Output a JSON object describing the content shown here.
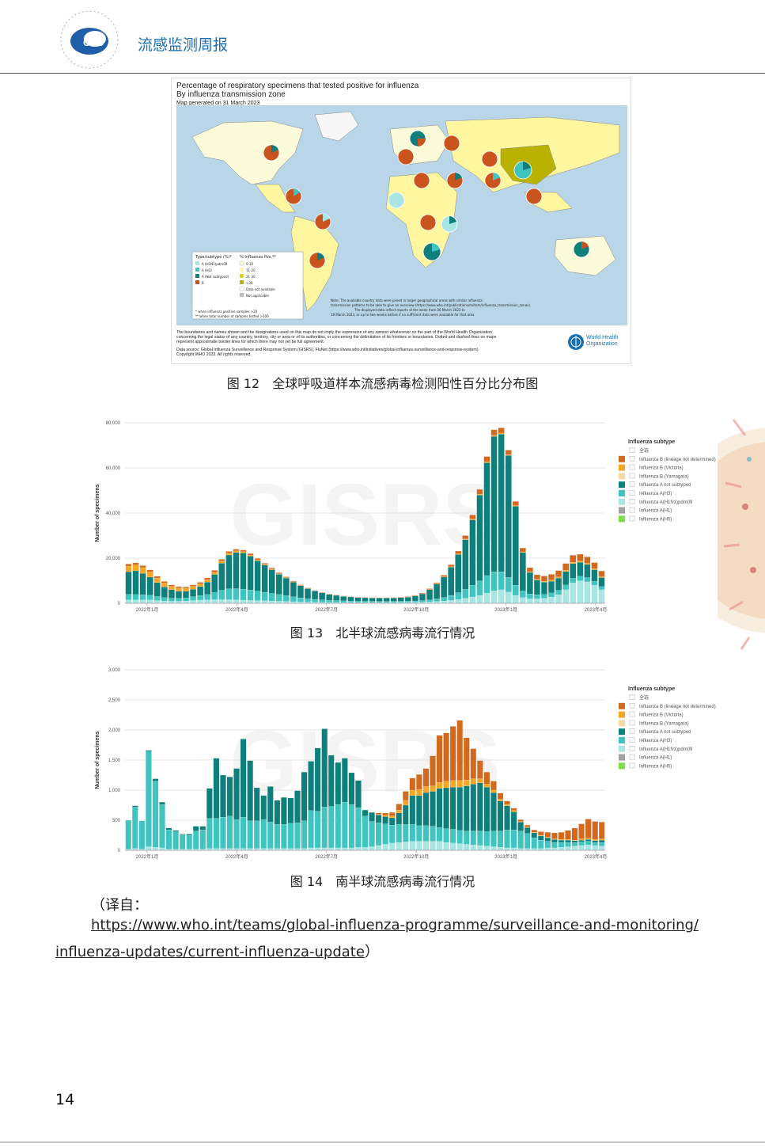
{
  "header": {
    "logo_text": "CDC",
    "title": "流感监测周报"
  },
  "figure12": {
    "map_title_lines": [
      "Percentage of respiratory specimens that tested positive for influenza",
      "By influenza transmission zone"
    ],
    "map_generated": "Map generated on 31 March 2023",
    "legend_type_title": "Type/subtype (%)*",
    "legend_types": [
      "A (H1N1)pdm09",
      "A (H3)",
      "A (Not subtyped)",
      "B"
    ],
    "legend_pos_title": "% Influenza Pos.**",
    "legend_pos": [
      "0-10",
      "11-20",
      "21-30",
      ">30",
      "Data not available",
      "Not applicable"
    ],
    "legend_notes": [
      "* when influenza positive samples >20",
      "** when total number of samples tested >100"
    ],
    "map_note_1": "Note: The available country data were joined in larger geographical areas with similar influenza",
    "map_note_2": "transmission patterns to be able to give an overview (https://www.who.int/publications/m/item/influenza_transmission_zones).",
    "map_note_3": "The displayed data reflect reports of the week from 06 March 2023 to",
    "map_note_4": "19 March 2023, or up to two weeks before if no sufficient data were available for that area",
    "disclaimer_1": "The boundaries and names shown and the designations used on this map do not imply the expression of any opinion whatsoever on the part of the World Health Organization",
    "disclaimer_2": "concerning the legal status of any country, territory, city or area or of its authorities, or concerning the delimitation of its frontiers or boundaries. Dotted and dashed lines on maps",
    "disclaimer_3": "represent approximate border lines for which there may not yet be full agreement.",
    "source_1": "Data source: Global Influenza Surveillance and Response System (GISRS), FluNet (https://www.who.int/initiatives/global-influenza-surveillance-and-response-system)",
    "source_2": "Copyright WHO 2023. All rights reserved.",
    "who_label_1": "World Health",
    "who_label_2": "Organization",
    "caption": "图 12　全球呼吸道样本流感病毒检测阳性百分比分布图"
  },
  "figure13": {
    "caption": "图 13　北半球流感病毒流行情况"
  },
  "figure14": {
    "caption": "图 14　南半球流感病毒流行情况"
  },
  "translation_note": {
    "prefix": "（译自：",
    "url_line1": "https://www.who.int/teams/global-influenza-programme/surveillance-and-monitoring/",
    "url_line2": "influenza-updates/current-influenza-update",
    "suffix": "）"
  },
  "page_number": "14",
  "colors": {
    "b_lineage_not_determined": "#d2691e",
    "b_victoria": "#f5a623",
    "b_yamagata": "#f8d8a8",
    "a_not_subtyped": "#0e7f7a",
    "a_h3": "#40c4c0",
    "a_h1n1pdm09": "#a8e6e3",
    "a_h1": "#a0a0a0",
    "a_h5": "#7de04a"
  },
  "chart_data": [
    {
      "type": "bar",
      "stacked": true,
      "watermark": "GISRS",
      "ylabel": "Number of specimens",
      "ylim": [
        0,
        80000
      ],
      "y_ticks": [
        "0",
        "20,000",
        "40,000",
        "60,000",
        "80,000"
      ],
      "x_tick_labels": [
        "2022年1月",
        "2022年4月",
        "2022年7月",
        "2022年10月",
        "2023年1月",
        "2023年4月"
      ],
      "legend_title": "Influenza subtype",
      "legend_items": [
        "全选",
        "Influenza B (lineage not determined)",
        "Influenza B (Victoria)",
        "Influenza B (Yamagata)",
        "Influenza A not subtyped",
        "Influenza A(H3)",
        "Influenza A(H1N1)pdm09",
        "Influenza A(H1)",
        "Influenza A(H5)"
      ],
      "series": [
        {
          "name": "Influenza A(H1N1)pdm09",
          "values": [
            1500,
            1500,
            1500,
            1500,
            1200,
            1000,
            900,
            900,
            1000,
            1200,
            1400,
            1500,
            1600,
            1600,
            1600,
            1500,
            1400,
            1300,
            1200,
            1100,
            1000,
            900,
            800,
            700,
            600,
            500,
            450,
            400,
            380,
            360,
            340,
            330,
            320,
            330,
            340,
            350,
            360,
            380,
            400,
            420,
            450,
            500,
            600,
            800,
            1000,
            1300,
            1700,
            2200,
            2800,
            3500,
            4500,
            5500,
            6000,
            5000,
            3500,
            2500,
            2000,
            2000,
            2200,
            2800,
            3800,
            6000,
            9000,
            10000,
            9500,
            8000,
            6000
          ]
        },
        {
          "name": "Influenza A(H3)",
          "values": [
            2500,
            2400,
            2300,
            2100,
            1800,
            1500,
            1300,
            1300,
            1400,
            1700,
            2000,
            2400,
            3200,
            4200,
            4800,
            5000,
            4900,
            4600,
            4200,
            3800,
            3400,
            3000,
            2600,
            2200,
            1800,
            1500,
            1300,
            1100,
            950,
            850,
            750,
            680,
            620,
            580,
            550,
            520,
            500,
            500,
            520,
            550,
            600,
            700,
            900,
            1200,
            1600,
            2200,
            3000,
            4000,
            5200,
            6500,
            7800,
            8500,
            8000,
            6500,
            4500,
            3000,
            2200,
            1800,
            1700,
            1800,
            2000,
            2100,
            2100,
            2000,
            1900,
            1700,
            1400
          ]
        },
        {
          "name": "Influenza A not subtyped",
          "values": [
            10000,
            10500,
            9500,
            8000,
            6200,
            4800,
            3800,
            3200,
            3000,
            3300,
            4000,
            5500,
            8000,
            12000,
            15000,
            16000,
            16000,
            15000,
            13500,
            12000,
            10500,
            9000,
            7800,
            6500,
            5400,
            4500,
            3700,
            3100,
            2600,
            2300,
            2000,
            1800,
            1650,
            1550,
            1500,
            1450,
            1450,
            1500,
            1600,
            1800,
            2200,
            3000,
            4500,
            6500,
            9000,
            12500,
            17000,
            22000,
            29000,
            38000,
            50000,
            60000,
            61000,
            54000,
            35000,
            17000,
            9500,
            6500,
            5500,
            5200,
            5400,
            6000,
            6500,
            6200,
            5800,
            5200,
            4000
          ]
        },
        {
          "name": "Influenza B (Victoria)",
          "values": [
            2500,
            2600,
            2500,
            2300,
            2000,
            1700,
            1500,
            1400,
            1300,
            1300,
            1200,
            1100,
            1000,
            900,
            800,
            700,
            600,
            500,
            400,
            300,
            250,
            200,
            150,
            120,
            100,
            80,
            70,
            60,
            50,
            50,
            40,
            40,
            40,
            40,
            40,
            40,
            50,
            50,
            50,
            60,
            70,
            80,
            100,
            120,
            150,
            200,
            250,
            300,
            350,
            400,
            450,
            500,
            450,
            400,
            350,
            300,
            300,
            350,
            400,
            450,
            500,
            550,
            600,
            550,
            500,
            450,
            400
          ]
        },
        {
          "name": "Influenza B (lineage not determined)",
          "values": [
            900,
            900,
            900,
            900,
            800,
            700,
            650,
            600,
            600,
            650,
            700,
            750,
            800,
            800,
            800,
            750,
            700,
            650,
            600,
            550,
            500,
            450,
            400,
            350,
            300,
            250,
            220,
            200,
            180,
            160,
            150,
            140,
            130,
            130,
            130,
            140,
            150,
            160,
            180,
            200,
            250,
            300,
            400,
            500,
            700,
            900,
            1200,
            1500,
            1800,
            2100,
            2300,
            2400,
            2300,
            2000,
            1800,
            1700,
            1800,
            2000,
            2300,
            2600,
            2800,
            3000,
            3100,
            3000,
            2900,
            2700,
            2500
          ]
        }
      ]
    },
    {
      "type": "bar",
      "stacked": true,
      "watermark": "GISRS",
      "ylabel": "Number of specimens",
      "ylim": [
        0,
        3000
      ],
      "y_ticks": [
        "0",
        "500",
        "1,000",
        "1,500",
        "2,000",
        "2,500",
        "3,000"
      ],
      "x_tick_labels": [
        "2022年1月",
        "2022年4月",
        "2022年7月",
        "2022年10月",
        "2023年1月",
        "2023年4月"
      ],
      "legend_title": "Influenza subtype",
      "legend_items": [
        "全选",
        "Influenza B (lineage not determined)",
        "Influenza B (Victoria)",
        "Influenza B (Yamagata)",
        "Influenza A not subtyped",
        "Influenza A(H3)",
        "Influenza A(H1N1)pdm09",
        "Influenza A(H1)",
        "Influenza A(H5)"
      ],
      "series": [
        {
          "name": "Influenza A(H1N1)pdm09",
          "values": [
            20,
            30,
            20,
            60,
            50,
            40,
            20,
            20,
            20,
            20,
            20,
            20,
            30,
            30,
            30,
            30,
            30,
            30,
            30,
            30,
            30,
            30,
            30,
            30,
            30,
            30,
            30,
            40,
            40,
            40,
            40,
            40,
            40,
            40,
            50,
            50,
            60,
            80,
            100,
            120,
            130,
            140,
            150,
            150,
            150,
            150,
            150,
            130,
            120,
            110,
            100,
            90,
            80,
            70,
            60,
            50,
            40,
            40,
            30,
            30,
            30,
            30,
            40,
            40,
            50,
            60,
            70,
            80,
            90,
            80,
            70
          ]
        },
        {
          "name": "Influenza A(H3)",
          "values": [
            480,
            690,
            470,
            1580,
            1100,
            720,
            320,
            290,
            240,
            230,
            300,
            320,
            500,
            500,
            520,
            540,
            480,
            520,
            460,
            460,
            480,
            440,
            400,
            400,
            420,
            430,
            460,
            620,
            610,
            680,
            690,
            720,
            760,
            720,
            660,
            520,
            420,
            380,
            340,
            300,
            300,
            290,
            280,
            260,
            260,
            250,
            230,
            230,
            230,
            220,
            220,
            230,
            240,
            240,
            260,
            270,
            300,
            300,
            290,
            250,
            180,
            140,
            110,
            90,
            80,
            70,
            60,
            60,
            60,
            50,
            60
          ]
        },
        {
          "name": "Influenza A not subtyped",
          "values": [
            0,
            20,
            0,
            20,
            40,
            40,
            30,
            20,
            10,
            20,
            80,
            60,
            500,
            1000,
            700,
            650,
            850,
            1300,
            1000,
            550,
            400,
            590,
            400,
            450,
            420,
            530,
            810,
            820,
            1050,
            1300,
            850,
            700,
            730,
            530,
            450,
            100,
            150,
            130,
            120,
            120,
            190,
            320,
            480,
            500,
            550,
            580,
            650,
            680,
            700,
            720,
            750,
            780,
            800,
            740,
            640,
            500,
            400,
            300,
            150,
            100,
            80,
            70,
            60,
            50,
            40,
            40,
            30,
            30,
            30,
            30,
            40
          ]
        },
        {
          "name": "Influenza B (Victoria)",
          "values": [
            0,
            0,
            0,
            0,
            0,
            0,
            0,
            0,
            0,
            0,
            0,
            0,
            0,
            0,
            0,
            0,
            0,
            0,
            0,
            0,
            0,
            0,
            0,
            0,
            0,
            0,
            0,
            0,
            0,
            0,
            0,
            0,
            0,
            0,
            0,
            0,
            0,
            10,
            20,
            30,
            50,
            80,
            90,
            100,
            100,
            90,
            100,
            110,
            110,
            110,
            100,
            90,
            70,
            50,
            40,
            30,
            20,
            20,
            10,
            10,
            10,
            10,
            10,
            10,
            10,
            10,
            10,
            20,
            20,
            20,
            20
          ]
        },
        {
          "name": "Influenza B (lineage not determined)",
          "values": [
            0,
            0,
            0,
            0,
            0,
            0,
            0,
            0,
            0,
            0,
            0,
            0,
            0,
            0,
            0,
            0,
            0,
            0,
            0,
            0,
            0,
            0,
            0,
            0,
            0,
            0,
            0,
            0,
            0,
            0,
            0,
            0,
            0,
            0,
            0,
            0,
            0,
            20,
            40,
            60,
            100,
            150,
            200,
            250,
            300,
            500,
            780,
            800,
            900,
            1000,
            700,
            500,
            300,
            200,
            150,
            100,
            60,
            40,
            30,
            30,
            40,
            60,
            80,
            100,
            120,
            150,
            200,
            250,
            320,
            300,
            280
          ]
        }
      ]
    }
  ]
}
